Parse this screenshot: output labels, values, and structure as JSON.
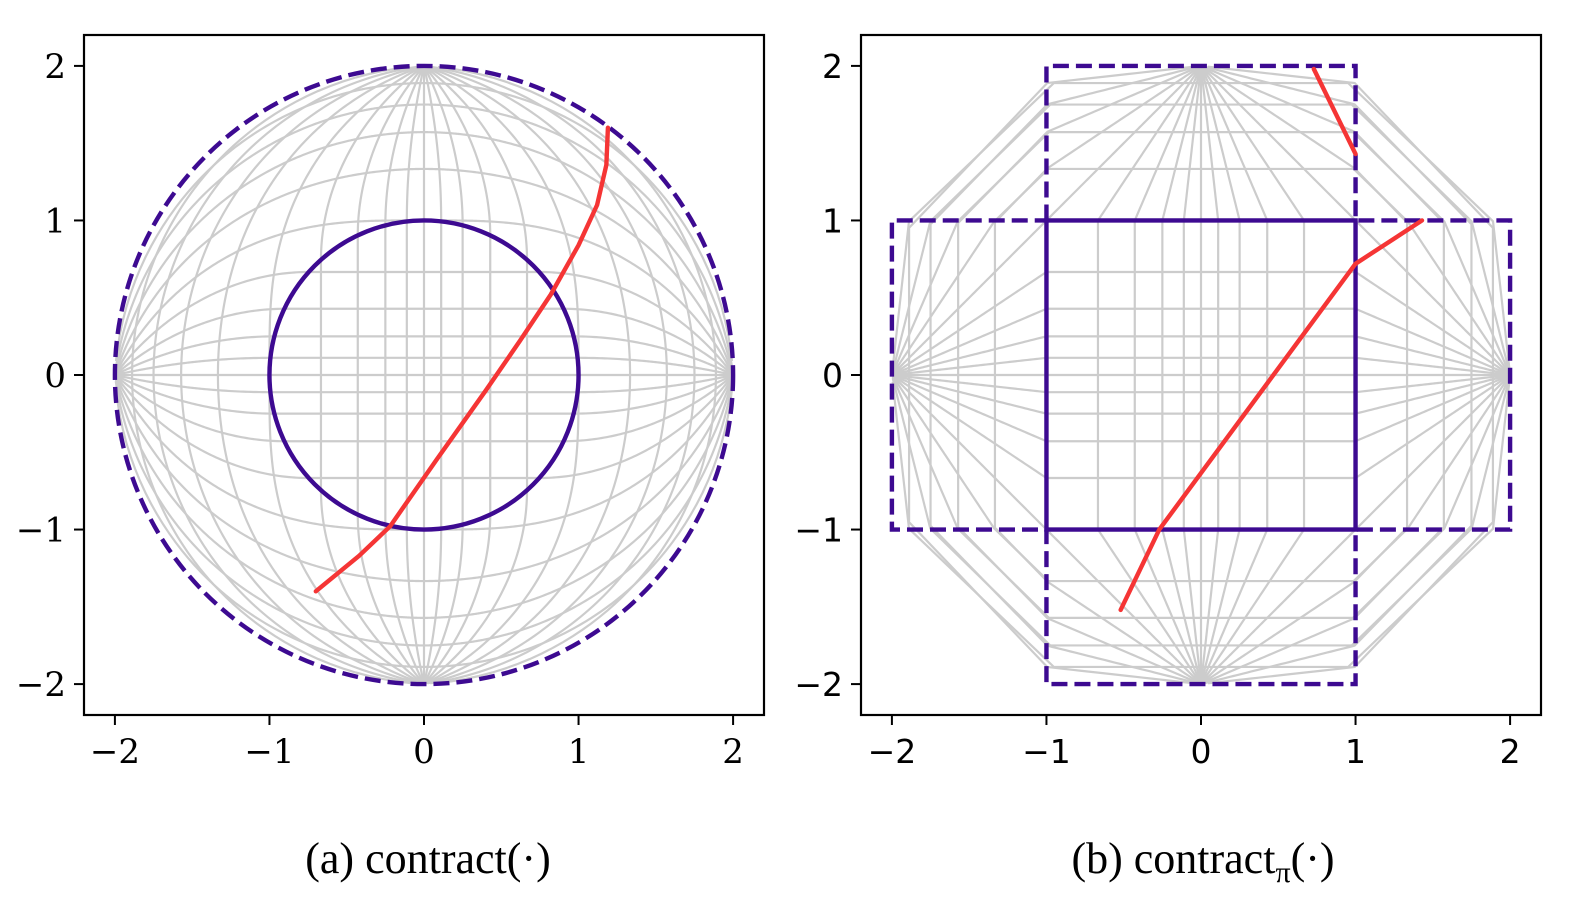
{
  "chart_data": [
    {
      "type": "line",
      "caption_prefix": "(a) contract",
      "caption_arg": "(·)",
      "caption_sub": "",
      "xlim": [
        -2.2,
        2.2
      ],
      "ylim": [
        -2.2,
        2.2
      ],
      "xticks": [
        "−2",
        "−1",
        "0",
        "1",
        "2"
      ],
      "yticks": [
        "2",
        "1",
        "0",
        "−1",
        "−2"
      ],
      "grid_lines": 21,
      "contraction": "spherical",
      "inner_boundary": {
        "shape": "circle",
        "radius": 1,
        "style": "solid",
        "color": "#3d0a91"
      },
      "outer_boundary": {
        "shape": "circle",
        "radius": 2,
        "style": "dashed",
        "color": "#3d0a91"
      },
      "series": [
        {
          "color": "#f53535",
          "points": [
            [
              -0.7,
              -1.4
            ],
            [
              -0.42,
              -1.17
            ],
            [
              -0.22,
              -0.98
            ],
            [
              0.08,
              -0.55
            ],
            [
              0.4,
              -0.1
            ],
            [
              0.62,
              0.22
            ],
            [
              0.82,
              0.52
            ],
            [
              1.0,
              0.84
            ],
            [
              1.12,
              1.1
            ],
            [
              1.18,
              1.36
            ],
            [
              1.19,
              1.6
            ]
          ]
        }
      ],
      "colors": {
        "grid": "#cccccc",
        "boundary": "#3d0a91",
        "trajectory": "#f53535"
      }
    },
    {
      "type": "line",
      "caption_prefix": "(b) contract",
      "caption_arg": "(·)",
      "caption_sub": "π",
      "xlim": [
        -2.2,
        2.2
      ],
      "ylim": [
        -2.2,
        2.2
      ],
      "xticks": [
        "−2",
        "−1",
        "0",
        "1",
        "2"
      ],
      "yticks": [
        "2",
        "1",
        "0",
        "−1",
        "−2"
      ],
      "grid_lines": 21,
      "contraction": "piecewise-projective",
      "inner_boundary": {
        "shape": "square",
        "half_width": 1,
        "style": "solid",
        "color": "#3d0a91"
      },
      "outer_boundary": {
        "shape": "cross",
        "extent": 2,
        "style": "dashed",
        "color": "#3d0a91"
      },
      "series": [
        {
          "color": "#f53535",
          "segments": [
            [
              [
                0.73,
                1.98
              ],
              [
                1.0,
                1.43
              ]
            ],
            [
              [
                -0.52,
                -1.52
              ],
              [
                -0.27,
                -1.0
              ],
              [
                1.0,
                0.72
              ],
              [
                1.43,
                1.0
              ]
            ]
          ]
        }
      ],
      "colors": {
        "grid": "#cccccc",
        "boundary": "#3d0a91",
        "trajectory": "#f53535"
      }
    }
  ]
}
